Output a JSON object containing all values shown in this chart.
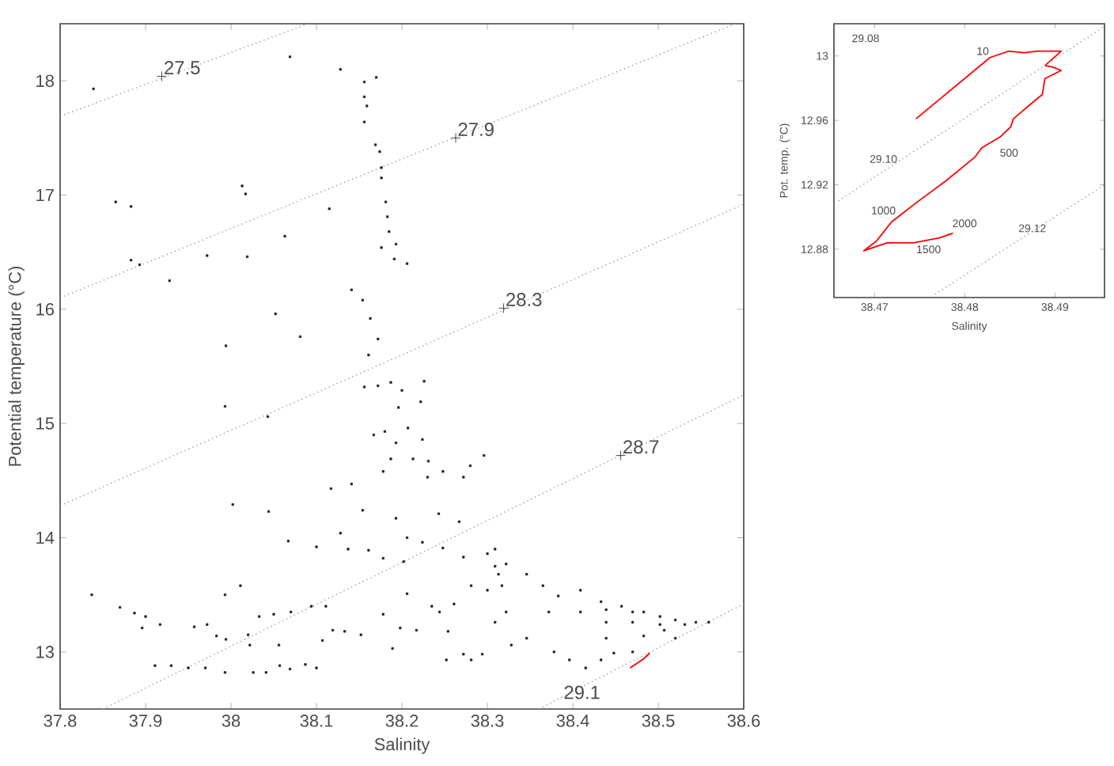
{
  "chart_data": [
    {
      "type": "scatter",
      "xlabel": "Salinity",
      "ylabel": "Potential temperature (°C)",
      "xlim": [
        37.8,
        38.6
      ],
      "ylim": [
        12.5,
        18.5
      ],
      "xticks": [
        37.8,
        37.9,
        38,
        38.1,
        38.2,
        38.3,
        38.4,
        38.5,
        38.6
      ],
      "yticks": [
        13,
        14,
        15,
        16,
        17,
        18
      ],
      "annotations": [
        {
          "text": "27.5",
          "x": 37.919,
          "y": 18.04
        },
        {
          "text": "27.9",
          "x": 38.263,
          "y": 17.5
        },
        {
          "text": "28.3",
          "x": 38.319,
          "y": 16.01
        },
        {
          "text": "28.7",
          "x": 38.456,
          "y": 14.72
        },
        {
          "text": "29.1",
          "x": 38.387,
          "y": 12.57
        }
      ],
      "series": [
        {
          "color": "#222222",
          "marker": "square",
          "x": [
            37.839,
            37.865,
            37.883,
            37.883,
            37.893,
            37.928,
            38.069,
            38.128,
            38.156,
            38.17,
            38.156,
            38.159,
            38.156,
            38.169,
            38.174,
            38.176,
            38.176,
            38.181,
            38.183,
            38.185,
            38.176,
            38.193,
            38.191,
            38.206,
            38.013,
            38.017,
            38.115,
            38.063,
            37.972,
            38.019,
            38.141,
            38.154,
            38.052,
            38.163,
            38.081,
            38.172,
            37.994,
            38.161,
            37.993,
            38.156,
            38.172,
            38.187,
            38.2,
            38.226,
            38.043,
            38.196,
            38.222,
            38.167,
            38.18,
            38.207,
            38.193,
            38.224,
            38.187,
            38.213,
            38.231,
            38.178,
            38.23,
            38.248,
            38.272,
            38.296,
            38.28,
            38.117,
            38.141,
            38.002,
            38.044,
            38.154,
            38.193,
            38.243,
            38.267,
            38.128,
            38.137,
            38.161,
            38.067,
            38.1,
            38.206,
            38.224,
            38.178,
            38.202,
            38.248,
            38.272,
            38.3,
            38.309,
            37.837,
            37.87,
            37.887,
            37.9,
            37.896,
            37.917,
            37.957,
            37.972,
            37.993,
            38.011,
            37.983,
            37.994,
            38.02,
            38.022,
            38.05,
            38.033,
            38.056,
            38.07,
            38.094,
            38.111,
            38.107,
            38.119,
            38.133,
            38.152,
            38.178,
            37.911,
            37.93,
            37.95,
            37.97,
            37.993,
            38.026,
            38.041,
            38.057,
            38.069,
            38.087,
            38.1,
            38.189,
            38.198,
            38.217,
            38.206,
            38.235,
            38.244,
            38.261,
            38.254,
            38.252,
            38.272,
            38.281,
            38.294,
            38.281,
            38.3,
            38.317,
            38.322,
            38.309,
            38.328,
            38.313,
            38.309,
            38.322,
            38.346,
            38.365,
            38.383,
            38.409,
            38.433,
            38.457,
            38.483,
            38.502,
            38.52,
            38.544,
            38.559,
            38.448,
            38.47,
            38.52,
            38.346,
            38.378,
            38.396,
            38.415,
            38.433,
            38.372,
            38.409,
            38.439,
            38.47,
            38.502,
            38.531,
            38.47,
            38.439,
            38.439,
            38.483,
            38.507
          ],
          "values": [
            17.93,
            16.94,
            16.9,
            16.43,
            16.39,
            16.25,
            18.21,
            18.1,
            17.99,
            18.03,
            17.86,
            17.78,
            17.64,
            17.44,
            17.38,
            17.24,
            17.15,
            16.94,
            16.81,
            16.68,
            16.54,
            16.57,
            16.44,
            16.4,
            17.08,
            17.01,
            16.88,
            16.64,
            16.47,
            16.46,
            16.17,
            16.08,
            15.96,
            15.92,
            15.76,
            15.74,
            15.68,
            15.6,
            15.15,
            15.32,
            15.33,
            15.36,
            15.29,
            15.37,
            15.06,
            15.14,
            15.19,
            14.9,
            14.93,
            14.96,
            14.83,
            14.86,
            14.69,
            14.69,
            14.67,
            14.58,
            14.53,
            14.58,
            14.53,
            14.72,
            14.63,
            14.43,
            14.47,
            14.29,
            14.23,
            14.24,
            14.17,
            14.21,
            14.14,
            14.04,
            13.9,
            13.89,
            13.97,
            13.92,
            14.0,
            13.96,
            13.82,
            13.79,
            13.91,
            13.83,
            13.86,
            13.75,
            13.5,
            13.39,
            13.34,
            13.31,
            13.21,
            13.24,
            13.22,
            13.24,
            13.5,
            13.58,
            13.14,
            13.11,
            13.15,
            13.06,
            13.33,
            13.31,
            13.06,
            13.35,
            13.4,
            13.4,
            13.1,
            13.19,
            13.18,
            13.15,
            13.33,
            12.88,
            12.88,
            12.86,
            12.86,
            12.82,
            12.82,
            12.82,
            12.88,
            12.85,
            12.89,
            12.86,
            13.03,
            13.21,
            13.19,
            13.51,
            13.4,
            13.35,
            13.42,
            13.18,
            12.93,
            12.98,
            12.93,
            12.98,
            13.58,
            13.54,
            13.58,
            13.35,
            13.26,
            13.06,
            13.68,
            13.9,
            13.77,
            13.68,
            13.58,
            13.49,
            13.54,
            13.44,
            13.4,
            13.35,
            13.31,
            13.28,
            13.26,
            13.26,
            12.99,
            13.0,
            13.12,
            13.12,
            13.0,
            12.93,
            12.86,
            12.93,
            13.35,
            13.35,
            13.26,
            13.26,
            13.24,
            13.24,
            13.35,
            13.37,
            13.12,
            13.14,
            13.19
          ]
        },
        {
          "color": "#222222",
          "marker": "cross",
          "x": [
            37.919,
            38.263,
            38.319,
            38.456
          ],
          "values": [
            18.04,
            17.5,
            16.01,
            14.72
          ]
        },
        {
          "type": "line",
          "color": "#ff0000",
          "marker": "none",
          "line_style": "solid",
          "x": [
            38.467,
            38.475,
            38.483,
            38.49
          ],
          "values": [
            12.86,
            12.9,
            12.94,
            12.99
          ]
        },
        {
          "type": "line",
          "color": "#999999",
          "marker": "none",
          "line_style": "dotted",
          "x": [
            37.8,
            38.09
          ],
          "values": [
            17.69,
            18.5
          ]
        },
        {
          "type": "line",
          "color": "#999999",
          "marker": "none",
          "line_style": "dotted",
          "x": [
            37.8,
            38.59
          ],
          "values": [
            16.1,
            18.5
          ]
        },
        {
          "type": "line",
          "color": "#999999",
          "marker": "none",
          "line_style": "dotted",
          "x": [
            37.8,
            38.6
          ],
          "values": [
            14.28,
            16.92
          ]
        },
        {
          "type": "line",
          "color": "#999999",
          "marker": "none",
          "line_style": "dotted",
          "x": [
            37.85,
            38.6
          ],
          "values": [
            12.5,
            15.25
          ]
        },
        {
          "type": "line",
          "color": "#999999",
          "marker": "none",
          "line_style": "dotted",
          "x": [
            38.36,
            38.6
          ],
          "values": [
            12.5,
            13.42
          ]
        }
      ]
    },
    {
      "type": "line",
      "xlabel": "Salinity",
      "ylabel": "Pot. temp. (°C)",
      "xlim": [
        38.4655,
        38.4955
      ],
      "ylim": [
        12.85,
        13.02
      ],
      "xticks": [
        38.47,
        38.48,
        38.49
      ],
      "yticks": [
        12.88,
        12.92,
        12.96,
        13
      ],
      "annotations": [
        "10",
        "500",
        "1000",
        "1500",
        "2000",
        "29.08",
        "29.10",
        "29.12"
      ],
      "series": [
        {
          "color": "#ff0000",
          "marker": "none",
          "line_style": "solid",
          "x": [
            38.4746,
            38.4828,
            38.4849,
            38.4866,
            38.4881,
            38.4907,
            38.4889,
            38.4898,
            38.4907,
            38.4889,
            38.4886,
            38.4875,
            38.4854,
            38.4851,
            38.484,
            38.4819,
            38.4811,
            38.4778,
            38.4749,
            38.4726,
            38.4719,
            38.4702,
            38.4688,
            38.4714,
            38.4743,
            38.4772,
            38.4787
          ],
          "values": [
            12.961,
            12.999,
            13.003,
            13.002,
            13.003,
            13.003,
            12.994,
            12.993,
            12.991,
            12.986,
            12.976,
            12.971,
            12.961,
            12.956,
            12.95,
            12.943,
            12.937,
            12.922,
            12.91,
            12.9,
            12.897,
            12.885,
            12.879,
            12.884,
            12.884,
            12.887,
            12.89
          ]
        },
        {
          "color": "#999999",
          "marker": "none",
          "line_style": "dotted",
          "x": [
            38.466,
            38.4954
          ],
          "values": [
            12.91,
            13.018
          ]
        },
        {
          "color": "#999999",
          "marker": "none",
          "line_style": "dotted",
          "x": [
            38.4767,
            38.4955
          ],
          "values": [
            12.852,
            12.92
          ]
        }
      ]
    }
  ]
}
